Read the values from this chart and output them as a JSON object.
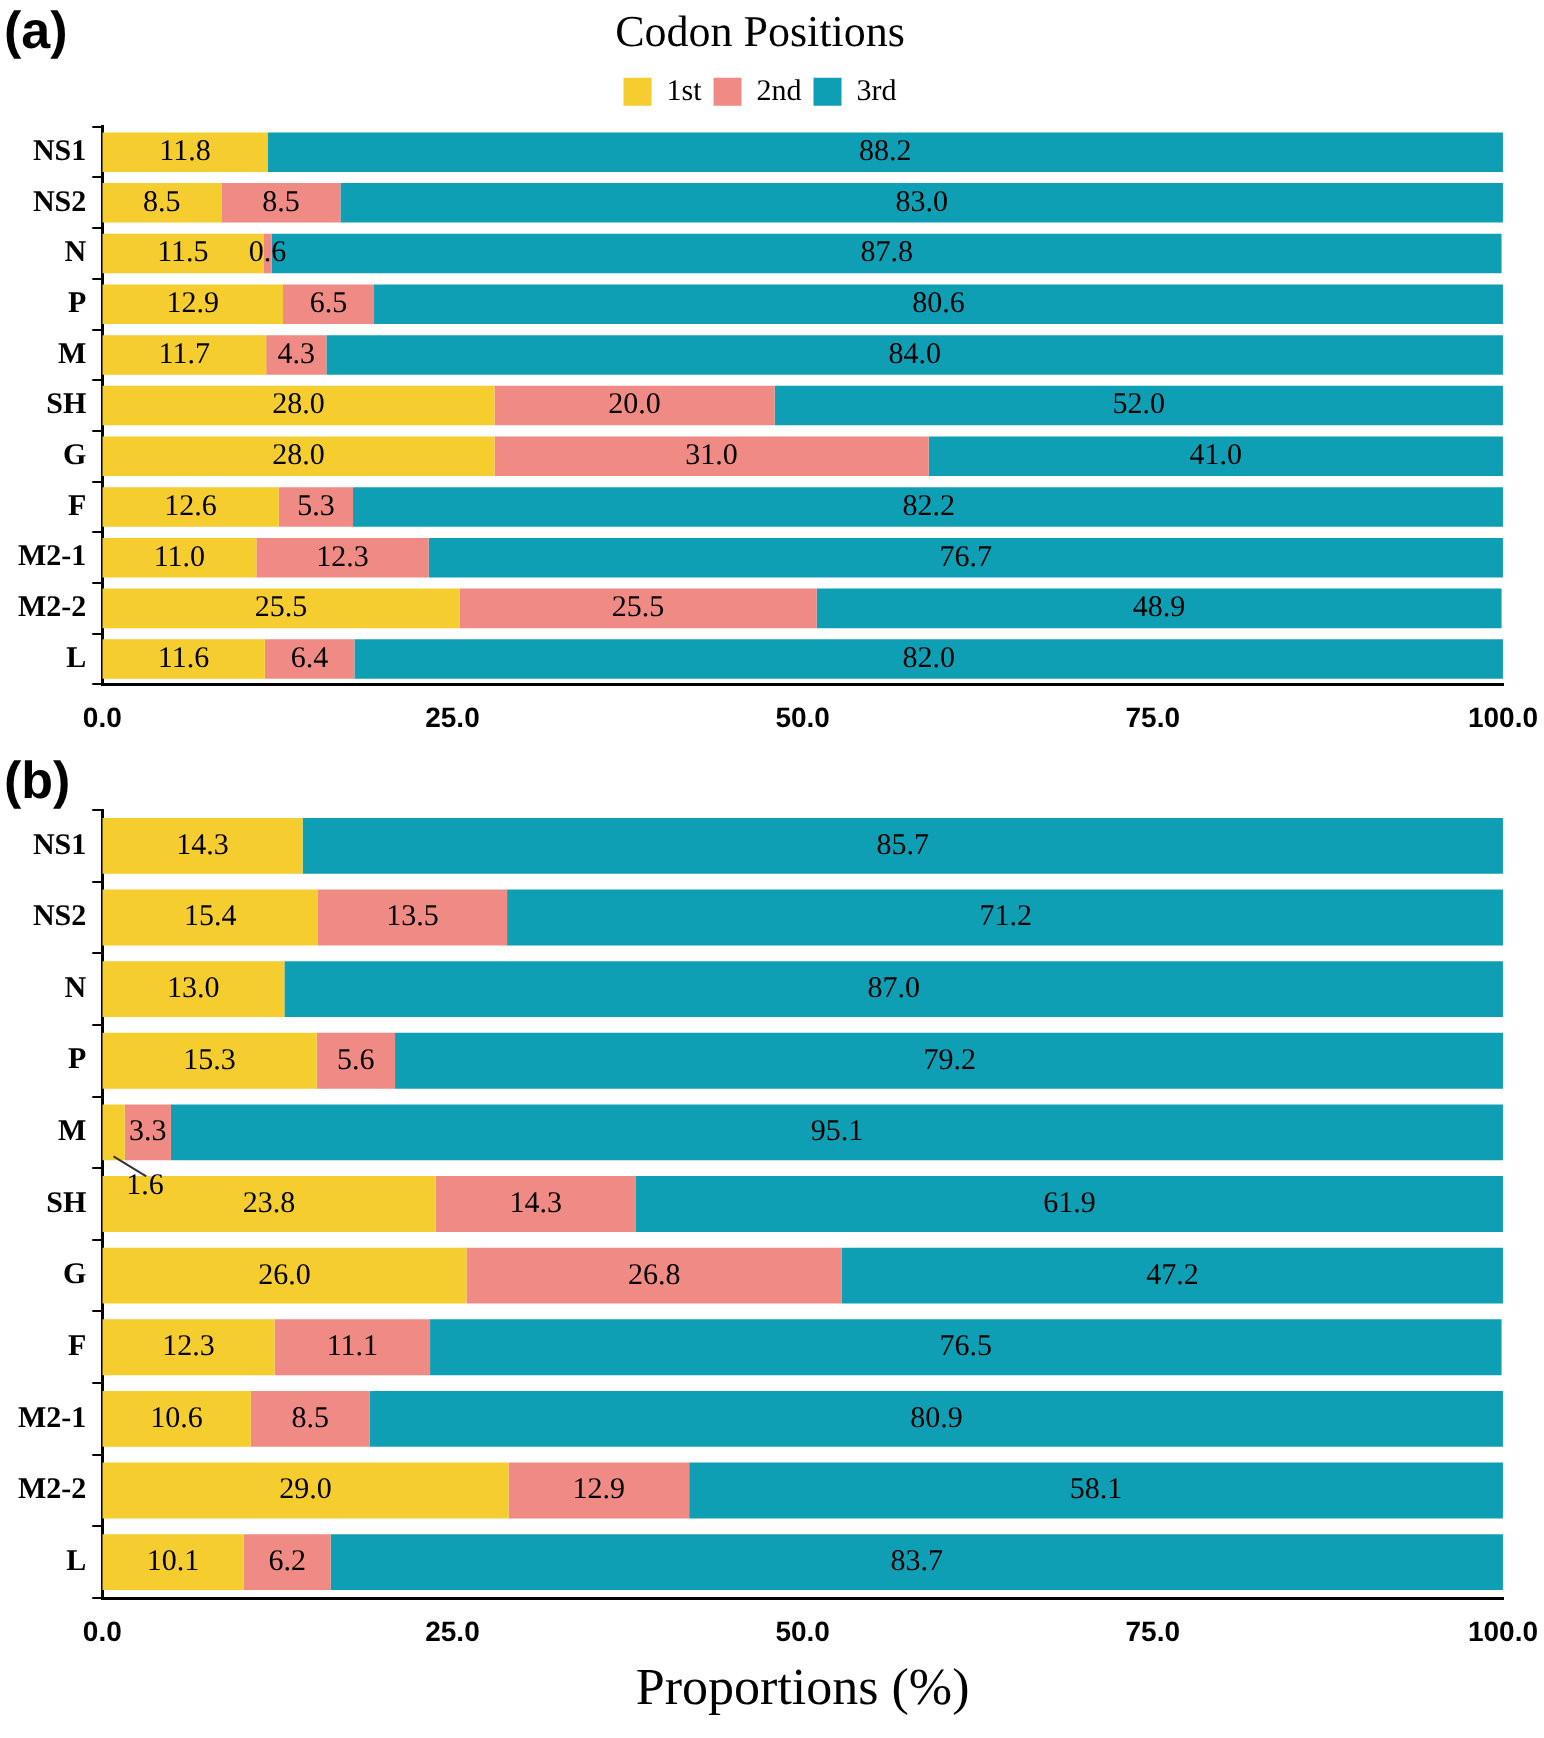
{
  "chart_data": [
    {
      "type": "bar",
      "orientation": "horizontal",
      "stacked": true,
      "title": "Codon Positions",
      "legend": "top",
      "annotations": [
        "(a)"
      ],
      "categories": [
        "NS1",
        "NS2",
        "N",
        "P",
        "M",
        "SH",
        "G",
        "F",
        "M2-1",
        "M2-2",
        "L"
      ],
      "series": [
        {
          "name": "1st",
          "color": "#f5cd2e",
          "values": [
            11.8,
            8.5,
            11.5,
            12.9,
            11.7,
            28.0,
            28.0,
            12.6,
            11.0,
            25.5,
            11.6
          ],
          "value_labels": [
            "11.8",
            "8.5",
            "11.5",
            "12.9",
            "11.7",
            "28.0",
            "28.0",
            "12.6",
            "11.0",
            "25.5",
            "11.6"
          ]
        },
        {
          "name": "2nd",
          "color": "#f08a84",
          "values": [
            null,
            8.5,
            0.6,
            6.5,
            4.3,
            20.0,
            31.0,
            5.3,
            12.3,
            25.5,
            6.4
          ],
          "value_labels": [
            null,
            "8.5",
            "0.6",
            "6.5",
            "4.3",
            "20.0",
            "31.0",
            "5.3",
            "12.3",
            "25.5",
            "6.4"
          ]
        },
        {
          "name": "3rd",
          "color": "#0f9fb5",
          "values": [
            88.2,
            83.0,
            87.8,
            80.6,
            84.0,
            52.0,
            41.0,
            82.2,
            76.7,
            48.9,
            82.0
          ],
          "value_labels": [
            "88.2",
            "83.0",
            "87.8",
            "80.6",
            "84.0",
            "52.0",
            "41.0",
            "82.2",
            "76.7",
            "48.9",
            "82.0"
          ]
        }
      ],
      "xlim": [
        0,
        100
      ],
      "xticks": [
        {
          "value": 0,
          "label": "0.0"
        },
        {
          "value": 25,
          "label": "25.0"
        },
        {
          "value": 50,
          "label": "50.0"
        },
        {
          "value": 75,
          "label": "75.0"
        },
        {
          "value": 100,
          "label": "100.0"
        }
      ]
    },
    {
      "type": "bar",
      "orientation": "horizontal",
      "stacked": true,
      "xlabel": "Proportions (%)",
      "annotations": [
        "(b)"
      ],
      "categories": [
        "NS1",
        "NS2",
        "N",
        "P",
        "M",
        "SH",
        "G",
        "F",
        "M2-1",
        "M2-2",
        "L"
      ],
      "series": [
        {
          "color": "#f5cd2e",
          "values": [
            14.3,
            15.4,
            13.0,
            15.3,
            1.6,
            23.8,
            26.0,
            12.3,
            10.6,
            29.0,
            10.1
          ],
          "value_labels": [
            "14.3",
            "15.4",
            "13.0",
            "15.3",
            "1.6",
            "23.8",
            "26.0",
            "12.3",
            "10.6",
            "29.0",
            "10.1"
          ]
        },
        {
          "color": "#f08a84",
          "values": [
            null,
            13.5,
            null,
            5.6,
            3.3,
            14.3,
            26.8,
            11.1,
            8.5,
            12.9,
            6.2
          ],
          "value_labels": [
            null,
            "13.5",
            null,
            "5.6",
            "3.3",
            "14.3",
            "26.8",
            "11.1",
            "8.5",
            "12.9",
            "6.2"
          ]
        },
        {
          "color": "#0f9fb5",
          "values": [
            85.7,
            71.2,
            87.0,
            79.2,
            95.1,
            61.9,
            47.2,
            76.5,
            80.9,
            58.1,
            83.7
          ],
          "value_labels": [
            "85.7",
            "71.2",
            "87.0",
            "79.2",
            "95.1",
            "61.9",
            "47.2",
            "76.5",
            "80.9",
            "58.1",
            "83.7"
          ]
        }
      ],
      "xlim": [
        0,
        100
      ],
      "xticks": [
        {
          "value": 0,
          "label": "0.0"
        },
        {
          "value": 25,
          "label": "25.0"
        },
        {
          "value": 50,
          "label": "50.0"
        },
        {
          "value": 75,
          "label": "75.0"
        },
        {
          "value": 100,
          "label": "100.0"
        }
      ]
    }
  ]
}
